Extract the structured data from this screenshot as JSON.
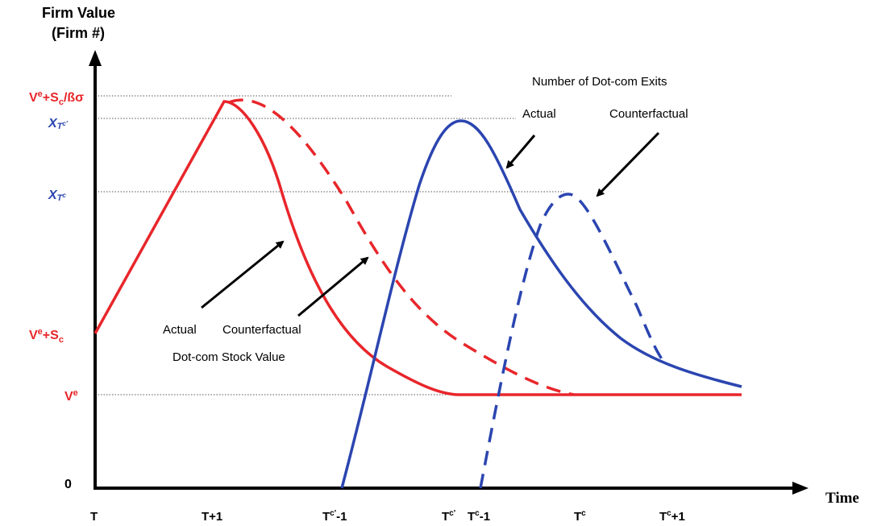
{
  "axes": {
    "y_title_line1": "Firm Value",
    "y_title_line2": "(Firm #)",
    "x_title": "Time",
    "origin": "0"
  },
  "y_labels": {
    "peak": {
      "base": "V",
      "sup": "e",
      "mid": "+S",
      "sub": "c",
      "tail": "/ßσ"
    },
    "x_tc_prime": {
      "base": "X",
      "sub": "T",
      "subsup": "c'"
    },
    "x_tc": {
      "base": "X",
      "sub": "T",
      "subsup": "c"
    },
    "ve_sc": {
      "base": "V",
      "sup": "e",
      "mid": "+S",
      "sub": "c"
    },
    "ve": {
      "base": "V",
      "sup": "e"
    }
  },
  "x_labels": {
    "t": "T",
    "t_plus_1": "T+1",
    "tc_prime_minus_1": {
      "base": "T",
      "sup": "c'",
      "tail": "-1"
    },
    "tc_prime": {
      "base": "T",
      "sup": "c'"
    },
    "tc_minus_1": {
      "base": "T",
      "sup": "c",
      "tail": "-1"
    },
    "tc": {
      "base": "T",
      "sup": "c"
    },
    "tc_plus_1": {
      "base": "T",
      "sup": "c",
      "tail": "+1"
    }
  },
  "annotations": {
    "exits_title": "Number of Dot-com Exits",
    "exits_actual": "Actual",
    "exits_counterfactual": "Counterfactual",
    "stock_actual": "Actual",
    "stock_counterfactual": "Counterfactual",
    "stock_title": "Dot-com Stock Value"
  },
  "colors": {
    "red": "#e8262b",
    "blue": "#2b45b0",
    "axis": "#000000",
    "grid": "#555555"
  }
}
